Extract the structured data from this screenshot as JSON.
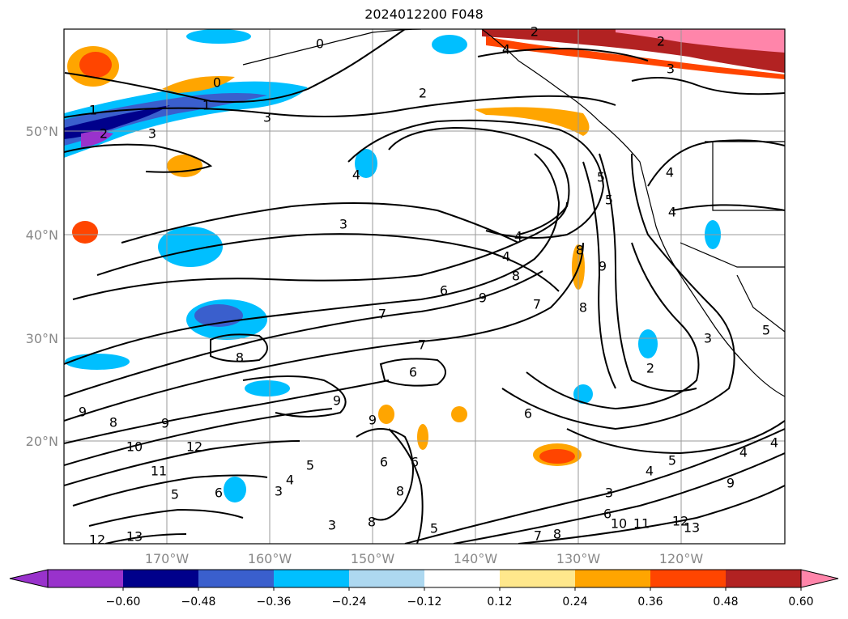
{
  "title": "2024012200 F048",
  "map": {
    "lat_labels": [
      "50°N",
      "40°N",
      "30°N",
      "20°N"
    ],
    "lon_labels": [
      "170°W",
      "160°W",
      "150°W",
      "140°W",
      "130°W",
      "120°W"
    ],
    "contour_labels": [
      "0",
      "1",
      "2",
      "3",
      "4",
      "5",
      "6",
      "7",
      "8",
      "9",
      "10",
      "11",
      "12",
      "13"
    ]
  },
  "colorbar": {
    "ticks": [
      "−0.60",
      "−0.48",
      "−0.36",
      "−0.24",
      "−0.12",
      "0.12",
      "0.24",
      "0.36",
      "0.48",
      "0.60"
    ],
    "colors": [
      "#9932cc",
      "#00008b",
      "#3a5fcd",
      "#00bfff",
      "#add8f0",
      "#ffffff",
      "#ffe88c",
      "#ffa500",
      "#ff4500",
      "#b22222",
      "#ff85aa",
      "#ff85aa"
    ]
  }
}
